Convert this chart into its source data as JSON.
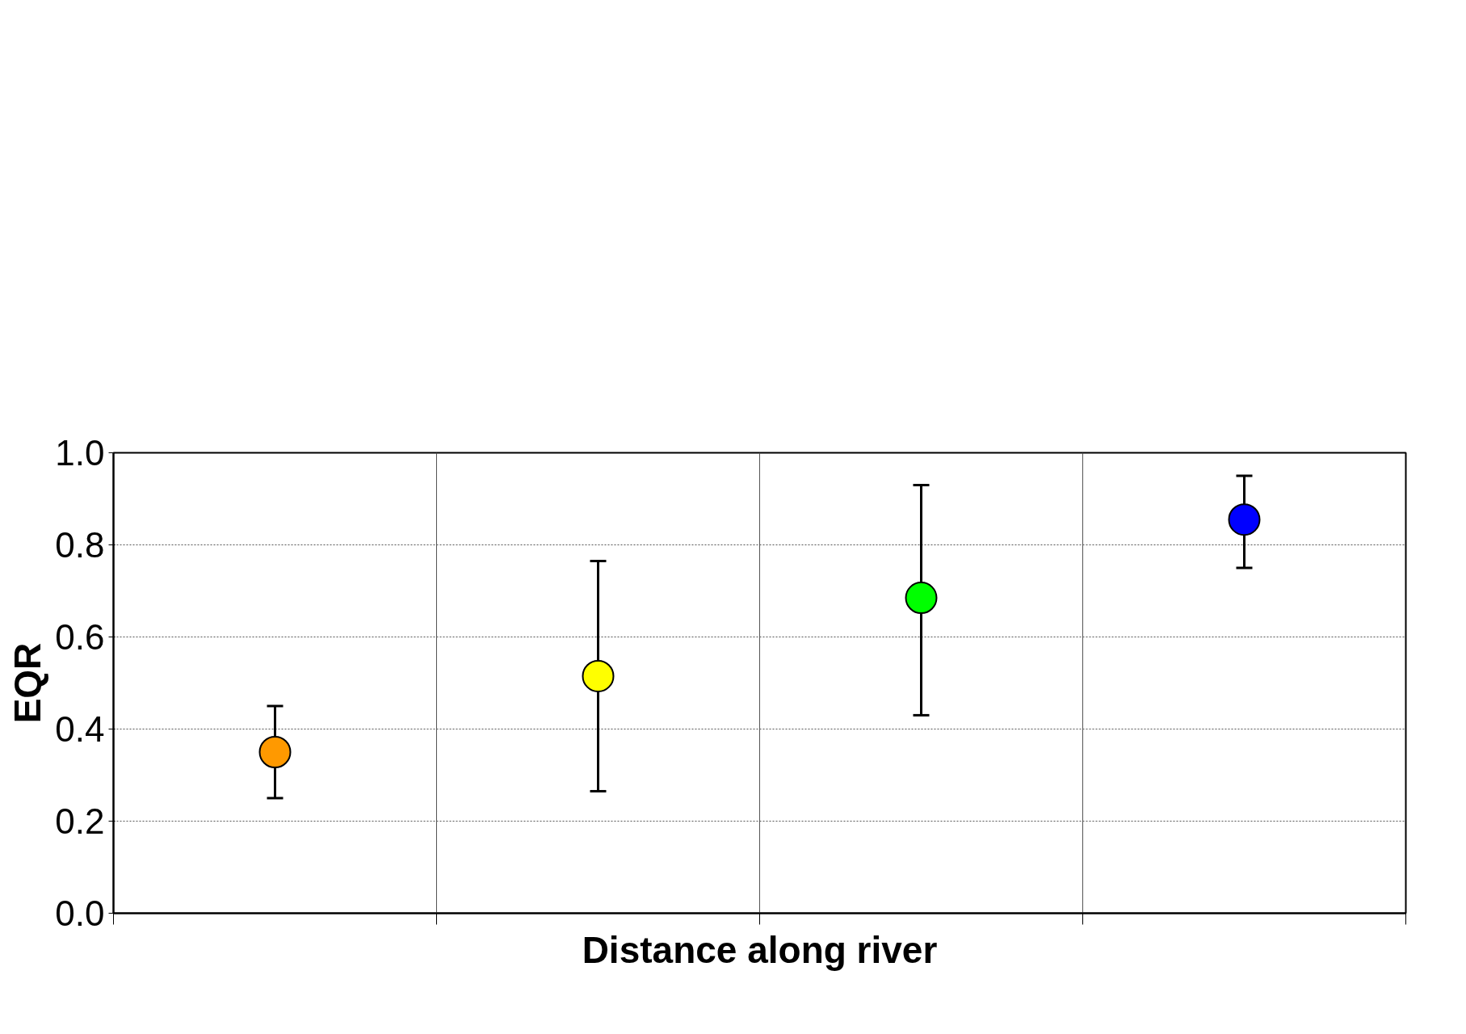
{
  "chart_data": {
    "type": "scatter",
    "xlabel": "Distance along river",
    "ylabel": "EQR",
    "categories": [
      null,
      null,
      null,
      null
    ],
    "values": [
      0.35,
      0.515,
      0.685,
      0.855
    ],
    "errors": [
      [
        0.25,
        0.45
      ],
      [
        0.265,
        0.765
      ],
      [
        0.43,
        0.93
      ],
      [
        0.75,
        0.95
      ]
    ],
    "colors": [
      "#ff9900",
      "#ffff00",
      "#00ff00",
      "#0000ff"
    ],
    "ylim": [
      0,
      1
    ],
    "yticks": [
      {
        "value": 0,
        "label": "0.0"
      },
      {
        "value": 0.2,
        "label": "0.2"
      },
      {
        "value": 0.4,
        "label": "0.4"
      },
      {
        "value": 0.6,
        "label": "0.6"
      },
      {
        "value": 0.8,
        "label": "0.8"
      },
      {
        "value": 1,
        "label": "1.0"
      }
    ],
    "grid": true,
    "marker": "circle",
    "tick_labels": "y"
  }
}
